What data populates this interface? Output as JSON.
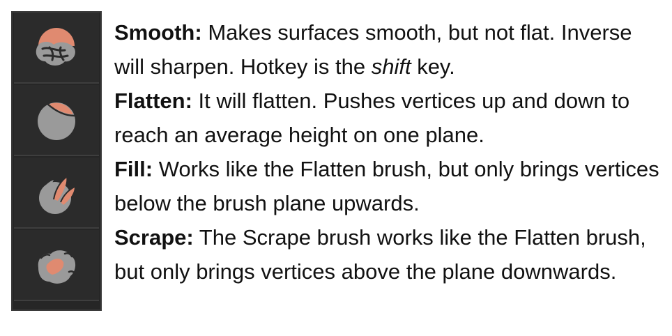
{
  "brushes": [
    {
      "icon": "smooth-brush-icon",
      "term": "Smooth:",
      "description_before": " Makes surfaces smooth, but not flat. Inverse will sharpen. Hotkey is the ",
      "emphasis": "shift",
      "description_after": " key."
    },
    {
      "icon": "flatten-brush-icon",
      "term": "Flatten:",
      "description": " It will flatten. Pushes vertices up and down to reach an average height on one plane."
    },
    {
      "icon": "fill-brush-icon",
      "term": "Fill:",
      "description": " Works like the Flatten brush, but only brings vertices below the brush plane upwards."
    },
    {
      "icon": "scrape-brush-icon",
      "term": "Scrape:",
      "description": " The Scrape brush works like the Flatten brush, but only brings vertices above the plane downwards."
    }
  ],
  "colors": {
    "panel": "#262626",
    "icon_gray": "#9a9a9a",
    "icon_accent": "#e08a70"
  }
}
